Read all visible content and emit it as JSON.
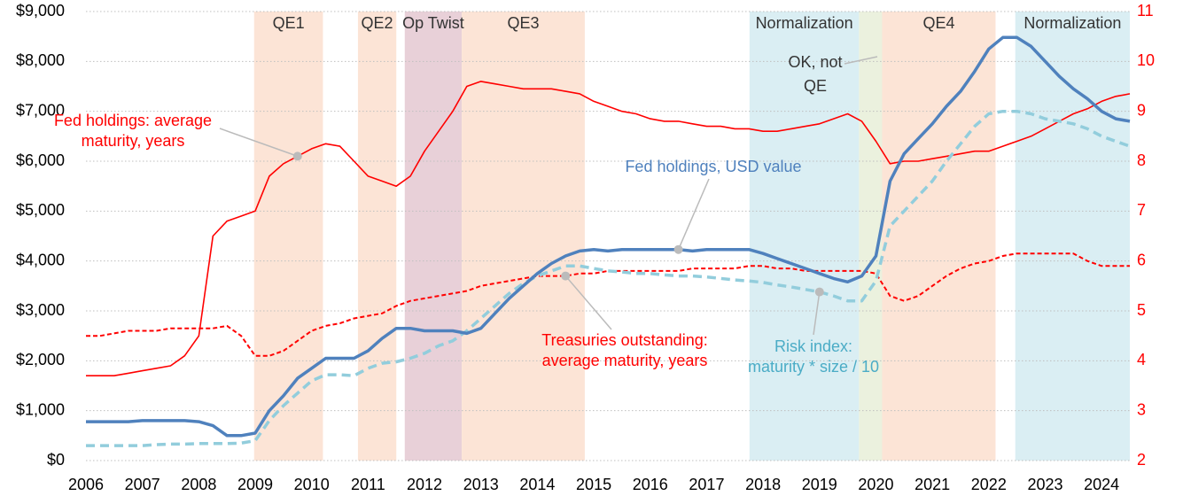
{
  "chart_data": {
    "type": "line",
    "xlim": [
      2006,
      2024.5
    ],
    "xticks": [
      2006,
      2007,
      2008,
      2009,
      2010,
      2011,
      2012,
      2013,
      2014,
      2015,
      2016,
      2017,
      2018,
      2019,
      2020,
      2021,
      2022,
      2023,
      2024
    ],
    "ylim": [
      0,
      9000
    ],
    "yticks": [
      {
        "value": 0,
        "label": "$0"
      },
      {
        "value": 1000,
        "label": "$1,000"
      },
      {
        "value": 2000,
        "label": "$2,000"
      },
      {
        "value": 3000,
        "label": "$3,000"
      },
      {
        "value": 4000,
        "label": "$4,000"
      },
      {
        "value": 5000,
        "label": "$5,000"
      },
      {
        "value": 6000,
        "label": "$6,000"
      },
      {
        "value": 7000,
        "label": "$7,000"
      },
      {
        "value": 8000,
        "label": "$8,000"
      },
      {
        "value": 9000,
        "label": "$9,000"
      }
    ],
    "y2lim": [
      2,
      11
    ],
    "y2ticks": [
      2,
      3,
      4,
      5,
      6,
      7,
      8,
      9,
      10,
      11
    ],
    "y2_color": "#ff0000",
    "grid": true,
    "regions": [
      {
        "label": [
          "QE1"
        ],
        "start": 2008.98,
        "end": 2010.2,
        "color": "#fce4d6"
      },
      {
        "label": [
          "QE2"
        ],
        "start": 2010.82,
        "end": 2011.5,
        "color": "#fce4d6"
      },
      {
        "label": [
          "Op Twist"
        ],
        "start": 2011.65,
        "end": 2012.66,
        "color": "#e8d0d8"
      },
      {
        "label": [
          "QE3"
        ],
        "start": 2012.66,
        "end": 2014.84,
        "color": "#fce4d6"
      },
      {
        "label": [
          "Normalization"
        ],
        "start": 2017.76,
        "end": 2019.7,
        "color": "#daeef3"
      },
      {
        "label": [
          "OK, not",
          "QE"
        ],
        "start": 2019.7,
        "end": 2020.11,
        "color": "#ebf1de"
      },
      {
        "label": [
          "QE4"
        ],
        "start": 2020.11,
        "end": 2022.12,
        "color": "#fce4d6"
      },
      {
        "label": [
          "Normalization"
        ],
        "start": 2022.47,
        "end": 2024.5,
        "color": "#daeef3"
      }
    ],
    "x": [
      2006,
      2006.25,
      2006.5,
      2006.75,
      2007,
      2007.25,
      2007.5,
      2007.75,
      2008,
      2008.25,
      2008.5,
      2008.75,
      2009,
      2009.25,
      2009.5,
      2009.75,
      2010,
      2010.25,
      2010.5,
      2010.75,
      2011,
      2011.25,
      2011.5,
      2011.75,
      2012,
      2012.25,
      2012.5,
      2012.75,
      2013,
      2013.25,
      2013.5,
      2013.75,
      2014,
      2014.25,
      2014.5,
      2014.75,
      2015,
      2015.25,
      2015.5,
      2015.75,
      2016,
      2016.25,
      2016.5,
      2016.75,
      2017,
      2017.25,
      2017.5,
      2017.75,
      2018,
      2018.25,
      2018.5,
      2018.75,
      2019,
      2019.25,
      2019.5,
      2019.75,
      2020,
      2020.25,
      2020.5,
      2020.75,
      2021,
      2021.25,
      2021.5,
      2021.75,
      2022,
      2022.25,
      2022.5,
      2022.75,
      2023,
      2023.25,
      2023.5,
      2023.75,
      2024,
      2024.25,
      2024.5
    ],
    "series": [
      {
        "name": [
          "Treasuries outstanding:",
          "average maturity, years"
        ],
        "color": "#ff0000",
        "dashed": true,
        "width": 2,
        "axis": "y2",
        "values": [
          4.5,
          4.5,
          4.55,
          4.6,
          4.6,
          4.6,
          4.65,
          4.65,
          4.65,
          4.65,
          4.7,
          4.5,
          4.1,
          4.1,
          4.2,
          4.4,
          4.6,
          4.7,
          4.75,
          4.85,
          4.9,
          4.95,
          5.1,
          5.2,
          5.25,
          5.3,
          5.35,
          5.4,
          5.5,
          5.55,
          5.6,
          5.65,
          5.7,
          5.7,
          5.7,
          5.75,
          5.75,
          5.8,
          5.8,
          5.8,
          5.8,
          5.8,
          5.8,
          5.85,
          5.85,
          5.85,
          5.85,
          5.9,
          5.9,
          5.85,
          5.85,
          5.8,
          5.8,
          5.8,
          5.8,
          5.8,
          5.75,
          5.3,
          5.2,
          5.3,
          5.5,
          5.7,
          5.85,
          5.95,
          6.0,
          6.1,
          6.15,
          6.15,
          6.15,
          6.15,
          6.15,
          6.0,
          5.9,
          5.9,
          5.9
        ]
      },
      {
        "name": [
          "Fed holdings: average",
          "maturity, years"
        ],
        "color": "#ff0000",
        "dashed": false,
        "width": 1.6,
        "axis": "y2",
        "values": [
          3.7,
          3.7,
          3.7,
          3.75,
          3.8,
          3.85,
          3.9,
          4.1,
          4.5,
          6.5,
          6.8,
          6.9,
          7.0,
          7.7,
          7.95,
          8.1,
          8.25,
          8.35,
          8.3,
          8.0,
          7.7,
          7.6,
          7.5,
          7.7,
          8.2,
          8.6,
          9.0,
          9.5,
          9.6,
          9.55,
          9.5,
          9.45,
          9.45,
          9.45,
          9.4,
          9.35,
          9.2,
          9.1,
          9.0,
          8.95,
          8.85,
          8.8,
          8.8,
          8.75,
          8.7,
          8.7,
          8.65,
          8.65,
          8.6,
          8.6,
          8.65,
          8.7,
          8.75,
          8.85,
          8.95,
          8.8,
          8.4,
          7.95,
          8.0,
          8.0,
          8.05,
          8.1,
          8.15,
          8.2,
          8.2,
          8.3,
          8.4,
          8.5,
          8.65,
          8.8,
          8.95,
          9.05,
          9.2,
          9.3,
          9.35
        ]
      },
      {
        "name": [
          "Risk index:",
          "maturity * size / 10"
        ],
        "color": "#92cddc",
        "dashed": true,
        "width": 3.5,
        "values": [
          300,
          300,
          300,
          300,
          300,
          320,
          330,
          330,
          340,
          340,
          340,
          350,
          400,
          800,
          1100,
          1350,
          1600,
          1720,
          1720,
          1700,
          1850,
          1950,
          1980,
          2050,
          2150,
          2300,
          2400,
          2600,
          2850,
          3100,
          3350,
          3550,
          3700,
          3800,
          3900,
          3900,
          3850,
          3800,
          3780,
          3750,
          3750,
          3720,
          3700,
          3700,
          3680,
          3650,
          3620,
          3600,
          3570,
          3520,
          3480,
          3430,
          3380,
          3300,
          3200,
          3200,
          3600,
          4700,
          5000,
          5300,
          5600,
          6000,
          6350,
          6700,
          6950,
          7000,
          7000,
          6950,
          6850,
          6800,
          6750,
          6650,
          6500,
          6400,
          6300
        ]
      },
      {
        "name": [
          "Fed holdings, USD value"
        ],
        "color": "#4f81bd",
        "dashed": false,
        "width": 3.5,
        "values": [
          780,
          780,
          780,
          780,
          800,
          800,
          800,
          800,
          780,
          700,
          500,
          500,
          550,
          1000,
          1300,
          1650,
          1850,
          2050,
          2050,
          2050,
          2200,
          2450,
          2650,
          2650,
          2600,
          2600,
          2600,
          2550,
          2650,
          2950,
          3250,
          3500,
          3750,
          3950,
          4100,
          4200,
          4230,
          4200,
          4230,
          4230,
          4230,
          4230,
          4230,
          4200,
          4230,
          4230,
          4230,
          4230,
          4150,
          4050,
          3950,
          3850,
          3750,
          3650,
          3580,
          3700,
          4100,
          5600,
          6150,
          6450,
          6750,
          7100,
          7400,
          7800,
          8250,
          8480,
          8480,
          8300,
          8000,
          7700,
          7450,
          7250,
          7000,
          6850,
          6800
        ]
      }
    ]
  }
}
